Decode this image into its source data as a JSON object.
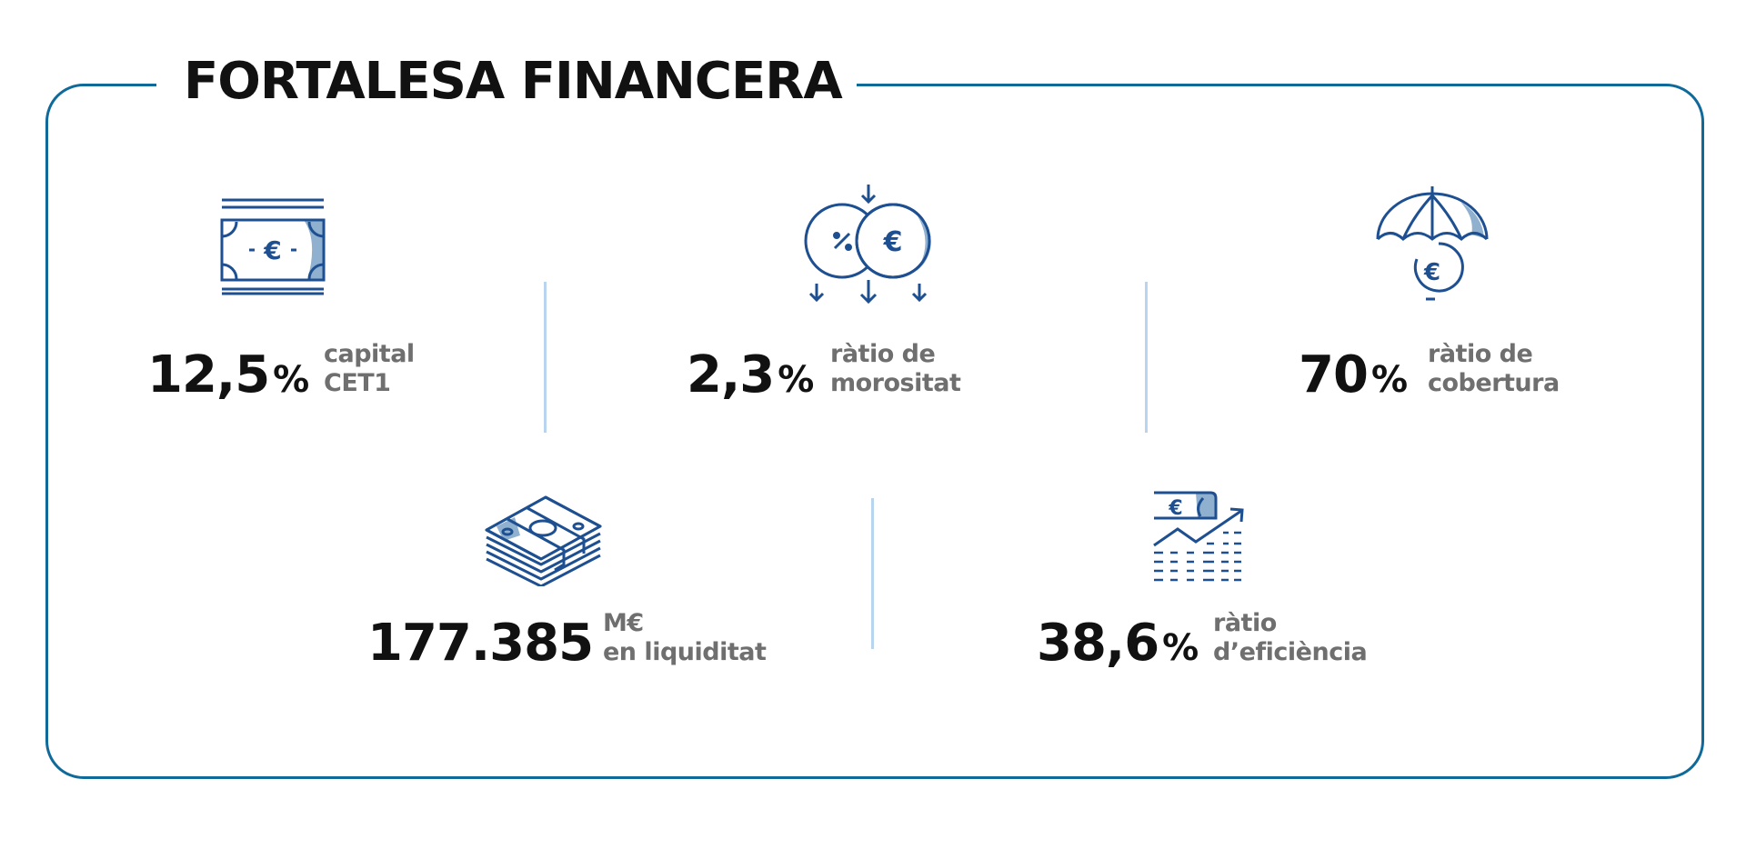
{
  "title": "FORTALESA FINANCERA",
  "stats": [
    {
      "icon": "banknote-icon",
      "value": "12,5",
      "unit": "%",
      "label_line1": "capital",
      "label_line2": "CET1"
    },
    {
      "icon": "coins-percent-euro-icon",
      "value": "2,3",
      "unit": "%",
      "label_line1": "ràtio de",
      "label_line2": "morositat"
    },
    {
      "icon": "umbrella-euro-icon",
      "value": "70",
      "unit": "%",
      "label_line1": "ràtio de",
      "label_line2": "cobertura"
    },
    {
      "icon": "banknote-stack-icon",
      "value": "177.385",
      "unit": "",
      "label_line1": "M€",
      "label_line2": "en liquiditat"
    },
    {
      "icon": "chart-growth-euro-icon",
      "value": "38,6",
      "unit": "%",
      "label_line1": "ràtio",
      "label_line2": "d’eficiència"
    }
  ],
  "colors": {
    "frame": "#0f6a9a",
    "icon_stroke": "#1d4f91",
    "icon_fill": "#8fb1cf",
    "divider": "#b8d4ee",
    "value_text": "#111111",
    "label_text": "#6f6f6f"
  }
}
